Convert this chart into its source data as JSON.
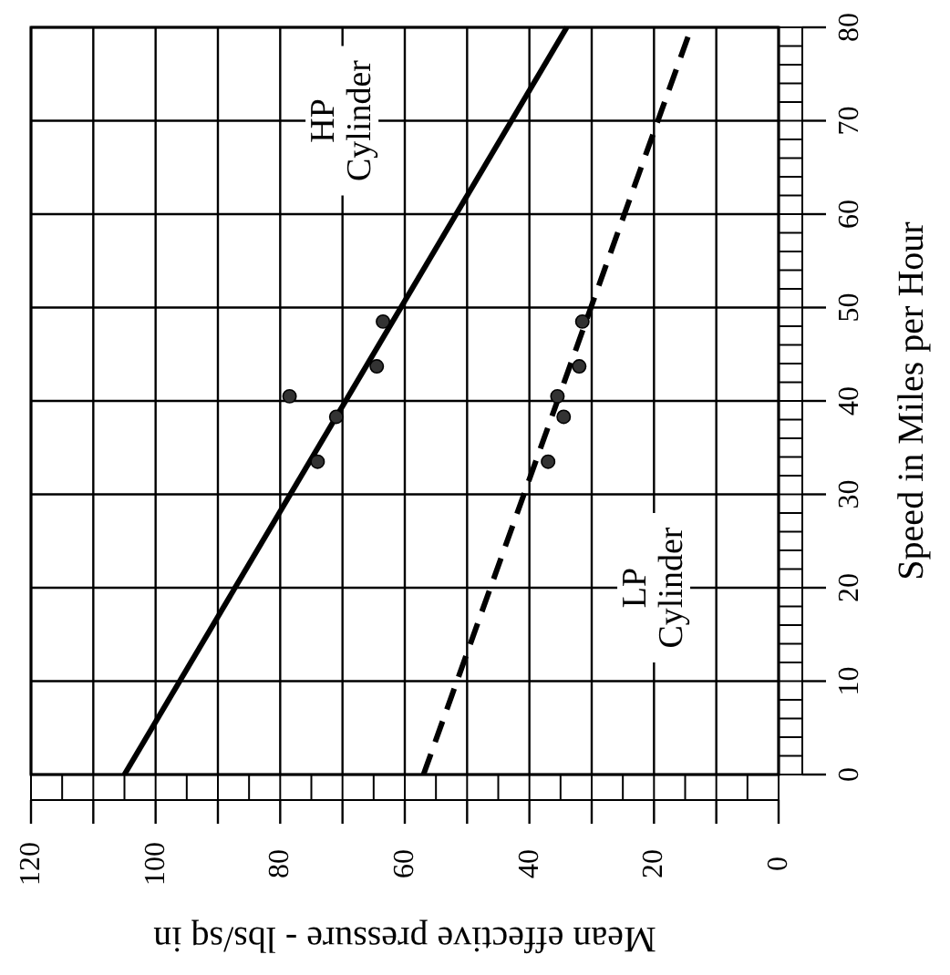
{
  "chart_data": {
    "type": "line",
    "xlabel": "Mean effective pressure - lbs/sq in",
    "ylabel": "Speed in Miles per Hour",
    "xlim": [
      120,
      0
    ],
    "xticks": [
      120,
      {
        "value": 110,
        "label": null
      },
      100,
      {
        "value": 90,
        "label": null
      },
      80,
      {
        "value": 70,
        "label": null
      },
      60,
      {
        "value": 50,
        "label": null
      },
      40,
      {
        "value": 30,
        "label": null
      },
      20,
      {
        "value": 10,
        "label": null
      },
      0
    ],
    "ylim": [
      0,
      80
    ],
    "yticks": [
      0,
      10,
      20,
      30,
      40,
      50,
      60,
      70,
      80
    ],
    "grid": true,
    "series": [
      {
        "color": "#000000",
        "line_style": "solid",
        "marker": "none",
        "x": [
          105,
          34
        ],
        "values": [
          0,
          80
        ]
      },
      {
        "color": "#000000",
        "line_style": "dashed",
        "marker": "none",
        "x": [
          57,
          14
        ],
        "values": [
          0,
          80
        ]
      },
      {
        "type": "scatter",
        "color": "#333333",
        "marker": "circle",
        "x": [
          74,
          71,
          78.5,
          64.5,
          63.5
        ],
        "values": [
          33.5,
          38.3,
          40.5,
          43.7,
          48.5
        ]
      },
      {
        "type": "scatter",
        "color": "#333333",
        "marker": "circle",
        "x": [
          37,
          34.5,
          35.5,
          32,
          31.5
        ],
        "values": [
          33.5,
          38.3,
          40.5,
          43.7,
          48.5
        ]
      }
    ],
    "annotations": [
      "HP Cylinder",
      "LP Cylinder"
    ]
  }
}
